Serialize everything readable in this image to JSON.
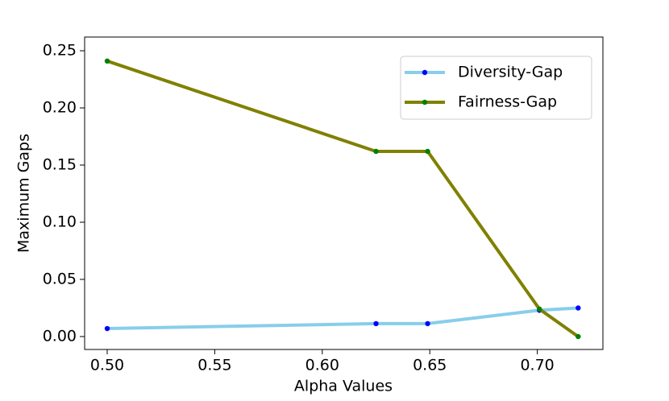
{
  "chart_data": {
    "type": "line",
    "xlabel": "Alpha Values",
    "ylabel": "Maximum Gaps",
    "x": [
      0.5,
      0.625,
      0.649,
      0.701,
      0.719
    ],
    "series": [
      {
        "name": "Diversity-Gap",
        "color": "#87ceeb",
        "marker_color": "#0000ff",
        "values": [
          0.007,
          0.0113,
          0.0113,
          0.023,
          0.025
        ]
      },
      {
        "name": "Fairness-Gap",
        "color": "#808000",
        "marker_color": "#008000",
        "values": [
          0.241,
          0.162,
          0.162,
          0.024,
          0.0
        ]
      }
    ],
    "xlim": [
      0.4895,
      0.7305
    ],
    "ylim": [
      -0.0113,
      0.262
    ],
    "xticks": [
      {
        "value": 0.5,
        "label": "0.50"
      },
      0.55,
      {
        "value": 0.6,
        "label": "0.60"
      },
      0.65,
      {
        "value": 0.7,
        "label": "0.70"
      }
    ],
    "yticks": [
      {
        "value": 0,
        "label": "0.00"
      },
      0.05,
      {
        "value": 0.1,
        "label": "0.10"
      },
      0.15,
      {
        "value": 0.2,
        "label": "0.20"
      },
      0.25
    ],
    "legend": "upper right",
    "grid": false
  }
}
